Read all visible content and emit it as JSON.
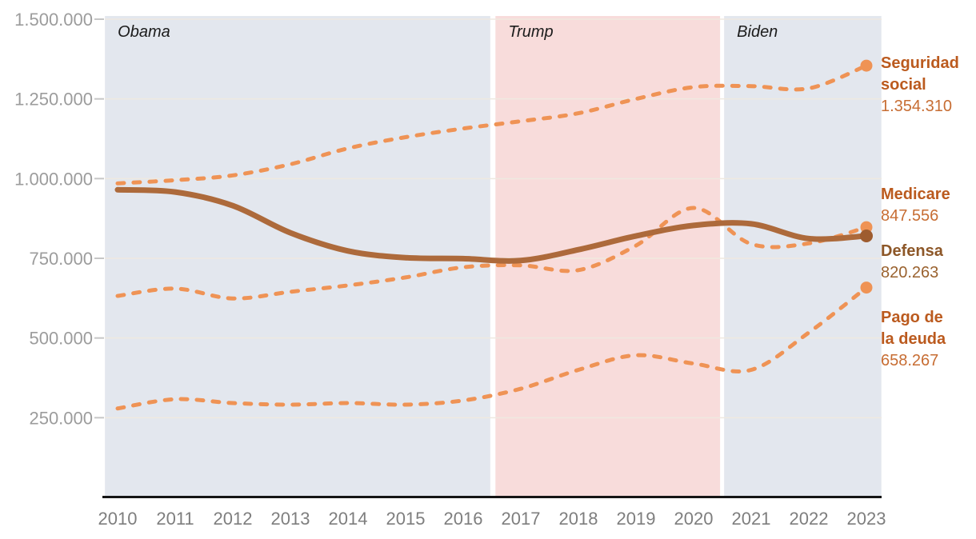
{
  "chart_data": {
    "type": "line",
    "title": "",
    "xlabel": "",
    "ylabel": "",
    "ylim": [
      0,
      1500000
    ],
    "grid": true,
    "legend_position": "right-edge-labels",
    "x": [
      2010,
      2011,
      2012,
      2013,
      2014,
      2015,
      2016,
      2017,
      2018,
      2019,
      2020,
      2021,
      2022,
      2023
    ],
    "x_tick_labels": [
      "2010",
      "2011",
      "2012",
      "2013",
      "2014",
      "2015",
      "2016",
      "2017",
      "2018",
      "2019",
      "2020",
      "2021",
      "2022",
      "2023"
    ],
    "y_ticks": [
      {
        "value": 1500000,
        "label": "1.500.000"
      },
      {
        "value": 1250000,
        "label": "1.250.000"
      },
      {
        "value": 1000000,
        "label": "1.000.000"
      },
      {
        "value": 750000,
        "label": "750.000"
      },
      {
        "value": 500000,
        "label": "500.000"
      },
      {
        "value": 250000,
        "label": "250.000"
      }
    ],
    "era_bands": [
      {
        "id": "obama",
        "label": "Obama",
        "start_year": 2009.78,
        "end_year": 2016.47,
        "color": "#e3e7ee"
      },
      {
        "id": "trump",
        "label": "Trump",
        "start_year": 2016.56,
        "end_year": 2020.46,
        "color": "#f8dcdb"
      },
      {
        "id": "biden",
        "label": "Biden",
        "start_year": 2020.53,
        "end_year": 2023.26,
        "color": "#e3e7ee"
      }
    ],
    "series": [
      {
        "id": "seguridad-social",
        "name": "Seguridad social",
        "label_lines": [
          "Seguridad",
          "social"
        ],
        "end_value": 1354310,
        "end_value_label": "1.354.310",
        "style": "dashed",
        "line_color": "#ef9355",
        "dot_color": "#ef9355",
        "name_color": "#bb5a1e",
        "value_color": "#c76d33",
        "values": [
          985000,
          995000,
          1010000,
          1045000,
          1095000,
          1130000,
          1157000,
          1180000,
          1205000,
          1250000,
          1287000,
          1290000,
          1283000,
          1354310
        ]
      },
      {
        "id": "medicare",
        "name": "Medicare",
        "label_lines": [
          "Medicare"
        ],
        "end_value": 847556,
        "end_value_label": "847.556",
        "style": "dashed",
        "line_color": "#ef9355",
        "dot_color": "#ef9355",
        "name_color": "#bb5a1e",
        "value_color": "#c76d33",
        "values": [
          632000,
          655000,
          624000,
          645000,
          665000,
          690000,
          722000,
          728000,
          713000,
          790000,
          908000,
          795000,
          797000,
          847556
        ]
      },
      {
        "id": "defensa",
        "name": "Defensa",
        "label_lines": [
          "Defensa"
        ],
        "end_value": 820263,
        "end_value_label": "820.263",
        "style": "solid",
        "line_color": "#ad6a3b",
        "dot_color": "#9e5c2f",
        "name_color": "#8d5728",
        "value_color": "#9a622f",
        "values": [
          965000,
          958000,
          915000,
          830000,
          773000,
          752000,
          749000,
          743000,
          777000,
          820000,
          853000,
          858000,
          812000,
          820263
        ]
      },
      {
        "id": "pago-de-la-deuda",
        "name": "Pago de la deuda",
        "label_lines": [
          "Pago de",
          "la deuda"
        ],
        "end_value": 658267,
        "end_value_label": "658.267",
        "style": "dashed",
        "line_color": "#ef9355",
        "dot_color": "#ef9355",
        "name_color": "#bb5a1e",
        "value_color": "#c76d33",
        "values": [
          279000,
          308000,
          296000,
          291000,
          296000,
          291000,
          304000,
          341000,
          400000,
          446000,
          420000,
          400000,
          517000,
          658267
        ]
      }
    ],
    "axis_line_color": "#151515",
    "gridline_color": "#efe9e0",
    "tick_mark_color": "#c6c6c6"
  }
}
